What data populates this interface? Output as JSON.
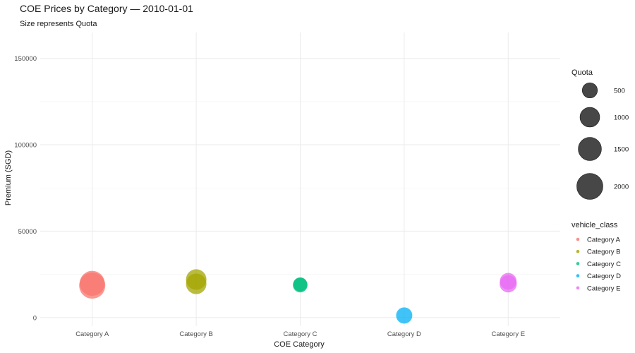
{
  "chart_data": {
    "type": "scatter",
    "title": "COE Prices by Category — 2010-01-01",
    "subtitle": "Size represents Quota",
    "xlabel": "COE Category",
    "ylabel": "Premium (SGD)",
    "categories": [
      "Category A",
      "Category B",
      "Category C",
      "Category D",
      "Category E"
    ],
    "ylim": [
      -5000,
      165000
    ],
    "yticks": [
      0,
      50000,
      100000,
      150000
    ],
    "grid": true,
    "points": [
      {
        "category": "Category A",
        "premium": 18500,
        "quota": 2000
      },
      {
        "category": "Category A",
        "premium": 19800,
        "quota": 1800
      },
      {
        "category": "Category B",
        "premium": 19500,
        "quota": 1100
      },
      {
        "category": "Category B",
        "premium": 22000,
        "quota": 1100
      },
      {
        "category": "Category C",
        "premium": 18800,
        "quota": 450
      },
      {
        "category": "Category C",
        "premium": 19200,
        "quota": 400
      },
      {
        "category": "Category D",
        "premium": 1200,
        "quota": 600
      },
      {
        "category": "Category E",
        "premium": 19500,
        "quota": 700
      },
      {
        "category": "Category E",
        "premium": 21000,
        "quota": 650
      }
    ],
    "size_legend": {
      "title": "Quota",
      "values": [
        500,
        1000,
        1500,
        2000
      ]
    },
    "color_legend": {
      "title": "vehicle_class",
      "entries": [
        {
          "label": "Category A",
          "color": "#F8766D"
        },
        {
          "label": "Category B",
          "color": "#A3A500"
        },
        {
          "label": "Category C",
          "color": "#00BF7D"
        },
        {
          "label": "Category D",
          "color": "#00B0F6"
        },
        {
          "label": "Category E",
          "color": "#E76BF3"
        }
      ],
      "placement": "right"
    }
  }
}
